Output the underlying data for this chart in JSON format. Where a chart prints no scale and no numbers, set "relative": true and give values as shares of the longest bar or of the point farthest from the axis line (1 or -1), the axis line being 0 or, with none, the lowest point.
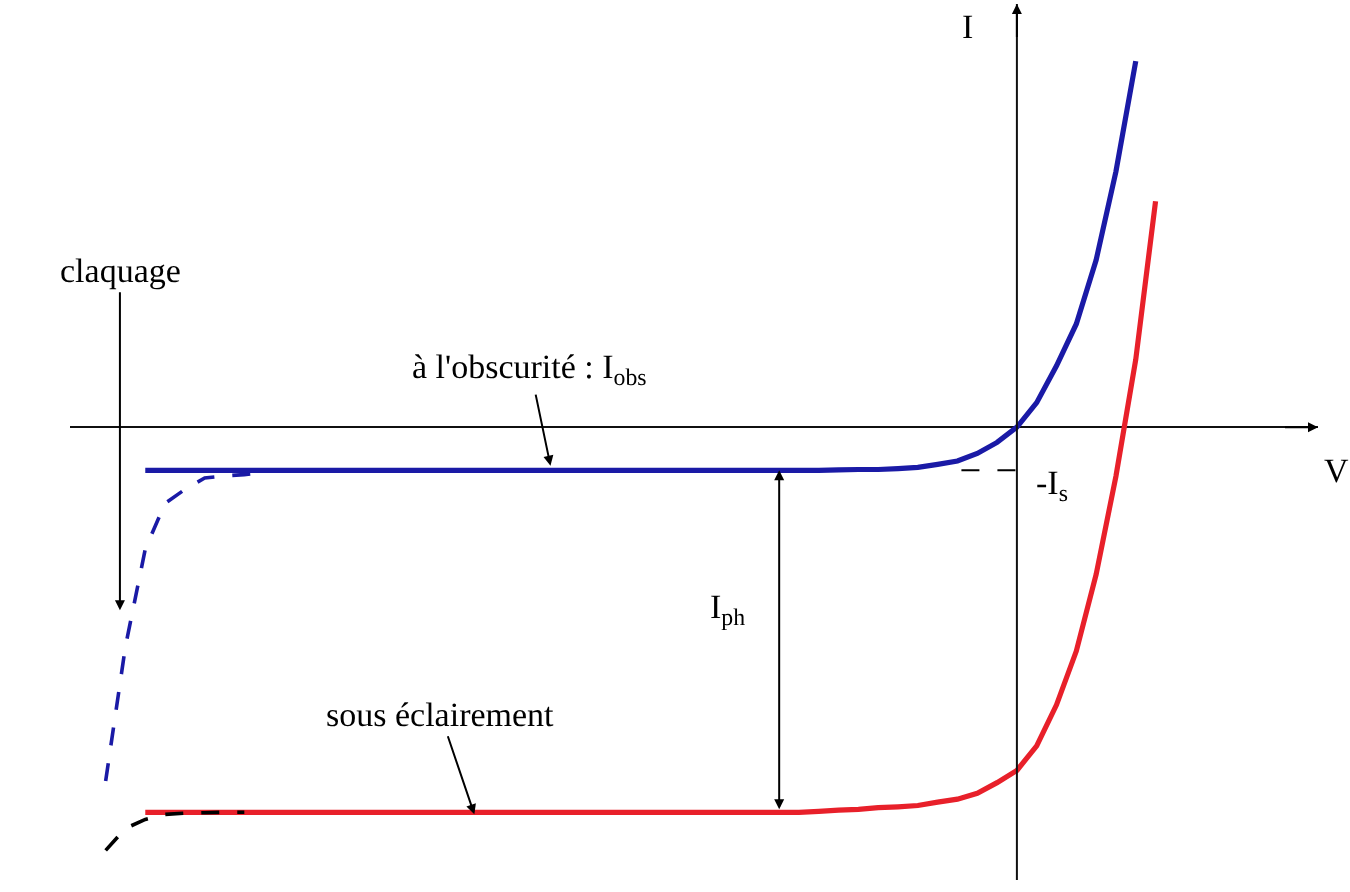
{
  "chart_data": {
    "type": "line",
    "relative": true,
    "xlabel": "V",
    "ylabel": "I",
    "grid": false,
    "categories": [
      null,
      null,
      null,
      null,
      null,
      null,
      null,
      null,
      null,
      null,
      null,
      null,
      null,
      null,
      null,
      null,
      null,
      null,
      null,
      null,
      null,
      null,
      null,
      null,
      null,
      null,
      null,
      null,
      null,
      null,
      null,
      null,
      null,
      null,
      null,
      null,
      null,
      null,
      null,
      null,
      null,
      null,
      null,
      null,
      null,
      null,
      null,
      null,
      null,
      null,
      null,
      null,
      null,
      null,
      null,
      null
    ],
    "series": [
      {
        "color": "#1a1aa6",
        "line_style": "solid",
        "values": [
          null,
          null,
          null,
          -0.102,
          -0.102,
          -0.102,
          -0.102,
          -0.102,
          -0.102,
          -0.102,
          -0.102,
          -0.102,
          -0.102,
          -0.102,
          -0.102,
          -0.102,
          -0.102,
          -0.102,
          -0.102,
          -0.102,
          -0.102,
          -0.102,
          -0.102,
          -0.102,
          -0.102,
          -0.102,
          -0.102,
          -0.102,
          -0.102,
          -0.102,
          -0.102,
          -0.102,
          -0.102,
          -0.102,
          -0.102,
          -0.102,
          -0.102,
          -0.102,
          -0.101,
          -0.1,
          -0.1,
          -0.098,
          -0.095,
          -0.088,
          -0.08,
          -0.062,
          -0.036,
          0,
          0.058,
          0.145,
          0.244,
          0.395,
          0.604,
          0.865,
          null,
          null
        ]
      },
      {
        "color": "#1a1aa6",
        "line_style": "dashed",
        "values": [
          null,
          -0.836,
          -0.518,
          -0.288,
          -0.18,
          -0.147,
          -0.12,
          -0.115,
          -0.112,
          -0.108,
          null,
          null,
          null,
          null,
          null,
          null,
          null,
          null,
          null,
          null,
          null,
          null,
          null,
          null,
          null,
          null,
          null,
          null,
          null,
          null,
          null,
          null,
          null,
          null,
          null,
          null,
          null,
          null,
          null,
          null,
          null,
          null,
          null,
          null,
          null,
          null,
          null,
          null,
          null,
          null,
          null,
          null,
          null,
          null,
          null,
          null
        ]
      },
      {
        "color": "#e8202a",
        "line_style": "solid",
        "values": [
          null,
          null,
          null,
          -0.91,
          -0.91,
          -0.91,
          -0.91,
          -0.91,
          -0.91,
          -0.91,
          -0.91,
          -0.91,
          -0.91,
          -0.91,
          -0.91,
          -0.91,
          -0.91,
          -0.91,
          -0.91,
          -0.91,
          -0.91,
          -0.91,
          -0.91,
          -0.91,
          -0.91,
          -0.91,
          -0.91,
          -0.91,
          -0.91,
          -0.91,
          -0.91,
          -0.91,
          -0.91,
          -0.91,
          -0.91,
          -0.91,
          -0.91,
          -0.908,
          -0.905,
          -0.903,
          -0.899,
          -0.897,
          -0.894,
          -0.886,
          -0.879,
          -0.865,
          -0.84,
          -0.811,
          -0.753,
          -0.656,
          -0.529,
          -0.348,
          -0.116,
          0.16,
          0.534,
          null
        ]
      },
      {
        "color": "#000000",
        "line_style": "dashed",
        "values": [
          null,
          -1.0,
          -0.948,
          -0.927,
          -0.915,
          -0.912,
          -0.911,
          -0.91,
          -0.91,
          null,
          null,
          null,
          null,
          null,
          null,
          null,
          null,
          null,
          null,
          null,
          null,
          null,
          null,
          null,
          null,
          null,
          null,
          null,
          null,
          null,
          null,
          null,
          null,
          null,
          null,
          null,
          null,
          null,
          null,
          null,
          null,
          null,
          null,
          null,
          null,
          null,
          null,
          null,
          null,
          null,
          null,
          null,
          null,
          null,
          null,
          null
        ]
      }
    ],
    "ref_lines": [
      {
        "axis": "y",
        "value": -0.102,
        "label": "-I$_{s}$",
        "color": "#000000",
        "line_style": "dashed"
      }
    ],
    "annotations": [
      "claquage",
      "à l'obscurité : I$_{obs}$",
      "I$_{ph}$",
      "sous éclairement"
    ]
  }
}
